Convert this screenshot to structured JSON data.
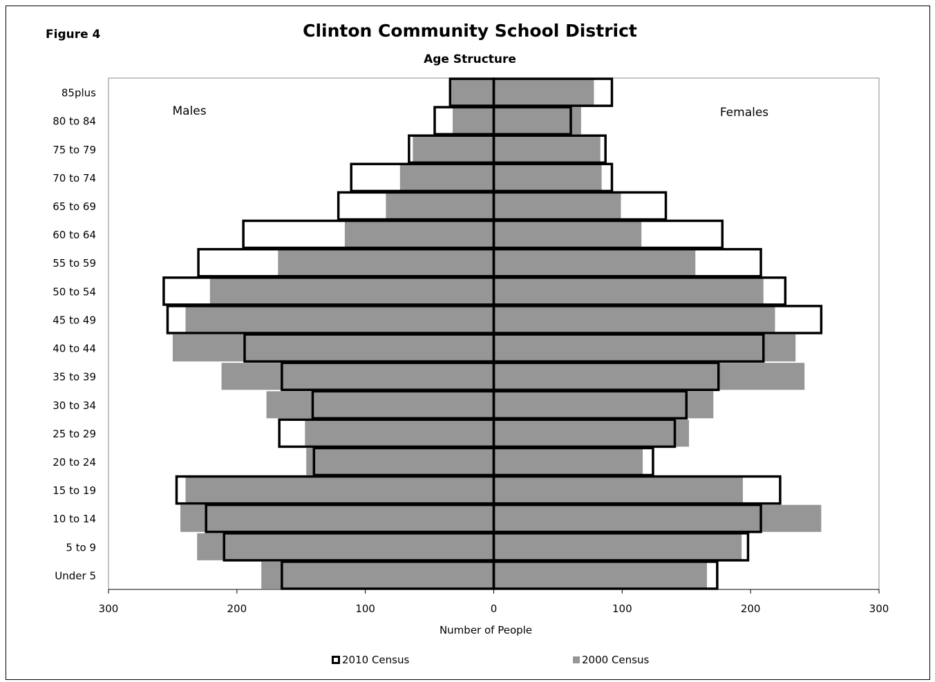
{
  "figure_label": "Figure 4",
  "chart_data": {
    "type": "bar",
    "orientation": "horizontal population pyramid",
    "title": "Clinton Community School District",
    "subtitle": "Age Structure",
    "xlabel": "Number  of People",
    "ylabel": "",
    "xlim": [
      -300,
      300
    ],
    "x_ticks": [
      -300,
      -200,
      -100,
      0,
      100,
      200,
      300
    ],
    "x_tick_labels": [
      "300",
      "200",
      "100",
      "0",
      "100",
      "200",
      "300"
    ],
    "side_labels": {
      "left": "Males",
      "right": "Females"
    },
    "grid": false,
    "legend_position": "bottom",
    "categories": [
      "85plus",
      "80 to 84",
      "75 to 79",
      "70 to 74",
      "65 to 69",
      "60 to 64",
      "55 to 59",
      "50 to 54",
      "45 to 49",
      "40 to 44",
      "35 to 39",
      "30 to 34",
      "25 to 29",
      "20 to 24",
      "15 to 19",
      "10 to 14",
      "5 to 9",
      "Under 5"
    ],
    "series": [
      {
        "name": "2010 Census",
        "style": "outline",
        "color": "#000000",
        "males": [
          34,
          46,
          66,
          111,
          121,
          195,
          230,
          257,
          254,
          194,
          165,
          141,
          167,
          140,
          247,
          224,
          210,
          165
        ],
        "females": [
          92,
          60,
          87,
          92,
          134,
          178,
          208,
          227,
          255,
          210,
          175,
          150,
          141,
          124,
          223,
          208,
          198,
          174
        ]
      },
      {
        "name": "2000 Census",
        "style": "filled",
        "color": "#969696",
        "males": [
          33,
          32,
          63,
          73,
          84,
          116,
          168,
          221,
          240,
          250,
          212,
          177,
          147,
          146,
          240,
          244,
          231,
          181
        ],
        "females": [
          78,
          68,
          83,
          84,
          99,
          115,
          157,
          210,
          219,
          235,
          242,
          171,
          152,
          116,
          194,
          255,
          193,
          166
        ]
      }
    ]
  }
}
